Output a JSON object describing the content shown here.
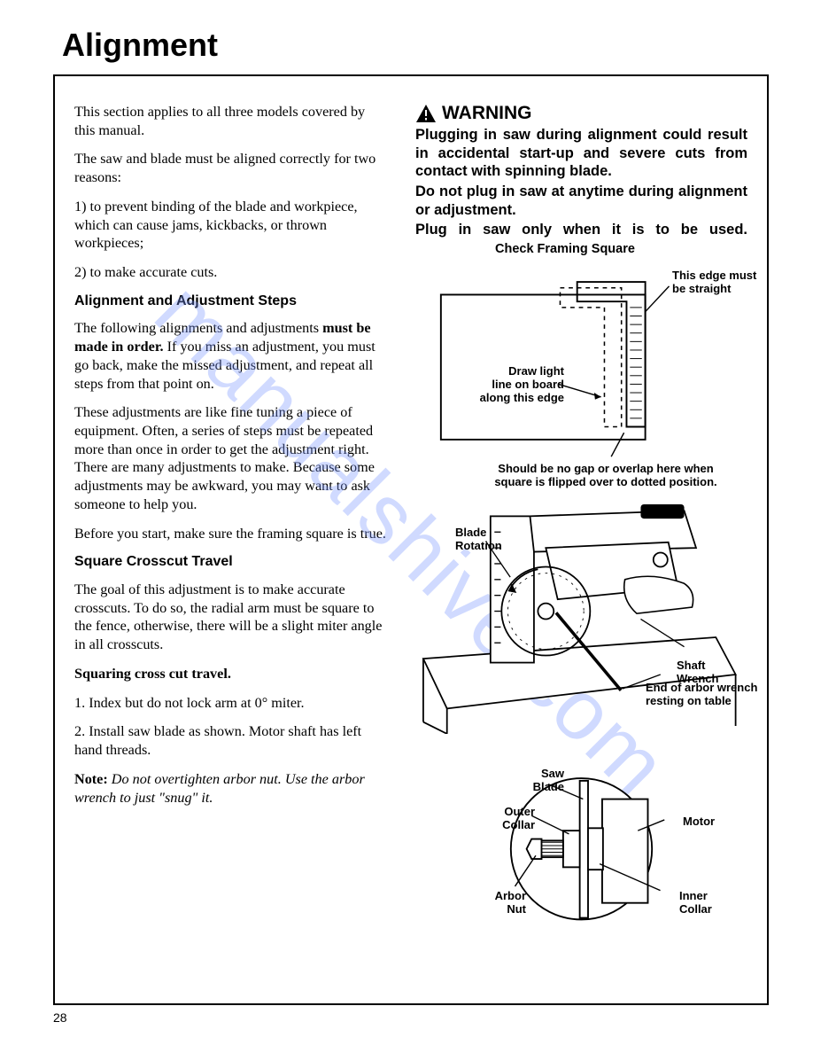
{
  "page": {
    "title": "Alignment",
    "number": "28"
  },
  "left": {
    "intro": "This section applies to all three models covered by this manual.",
    "p1": "The saw and blade must be aligned correctly for two reasons:",
    "r1": "1) to prevent binding of the blade and workpiece, which can cause jams, kickbacks, or thrown workpieces;",
    "r2": "2) to make accurate cuts.",
    "h1": "Alignment and Adjustment Steps",
    "p2a": "The following alignments and adjustments ",
    "p2b": "must be made in order.",
    "p2c": " If you miss an adjustment, you must go back, make the missed adjustment, and repeat all steps from that point on.",
    "p3": "These adjustments are like fine tuning a piece of equipment. Often, a series of steps must be repeated more than once in order to get the adjustment right. There are many adjustments to make. Because some adjustments may be awkward, you may want to ask someone to help you.",
    "p4": "Before you start, make sure the framing square is true.",
    "h2": "Square Crosscut Travel",
    "p5": "The goal of this adjustment is to make accurate crosscuts. To do so, the radial arm must be square to the fence, otherwise, there will be a slight miter angle in all crosscuts.",
    "h3": "Squaring cross cut travel.",
    "s1": "1. Index but do not lock arm at 0° miter.",
    "s2": "2. Install saw blade as shown. Motor shaft has left hand threads.",
    "noteLabel": "Note:",
    "note": " Do not overtighten arbor nut. Use the arbor wrench to just \"snug\" it."
  },
  "right": {
    "warnHead": "WARNING",
    "wb1": "Plugging in saw during alignment could result in accidental start-up and severe cuts from contact with spinning blade.",
    "wb2": "Do not plug in saw at anytime during alignment or adjustment.",
    "wb3": "Plug in saw only when it is to be used.",
    "checkCaption": "Check Framing Square",
    "fig1": {
      "edgeStraight": "This edge must\nbe straight",
      "drawLight": "Draw light\nline on board\nalong this edge",
      "noGap": "Should be no gap or overlap here when\nsquare is flipped over to dotted position."
    },
    "fig2": {
      "bladeRotation": "Blade\nRotation",
      "shaftWrench": "Shaft Wrench",
      "endArbor": "End of arbor wrench\nresting on table"
    },
    "fig3": {
      "sawBlade": "Saw\nBlade",
      "outerCollar": "Outer\nCollar",
      "arborNut": "Arbor\nNut",
      "motor": "Motor",
      "innerCollar": "Inner\nCollar"
    }
  },
  "watermark": "manualshive.com"
}
